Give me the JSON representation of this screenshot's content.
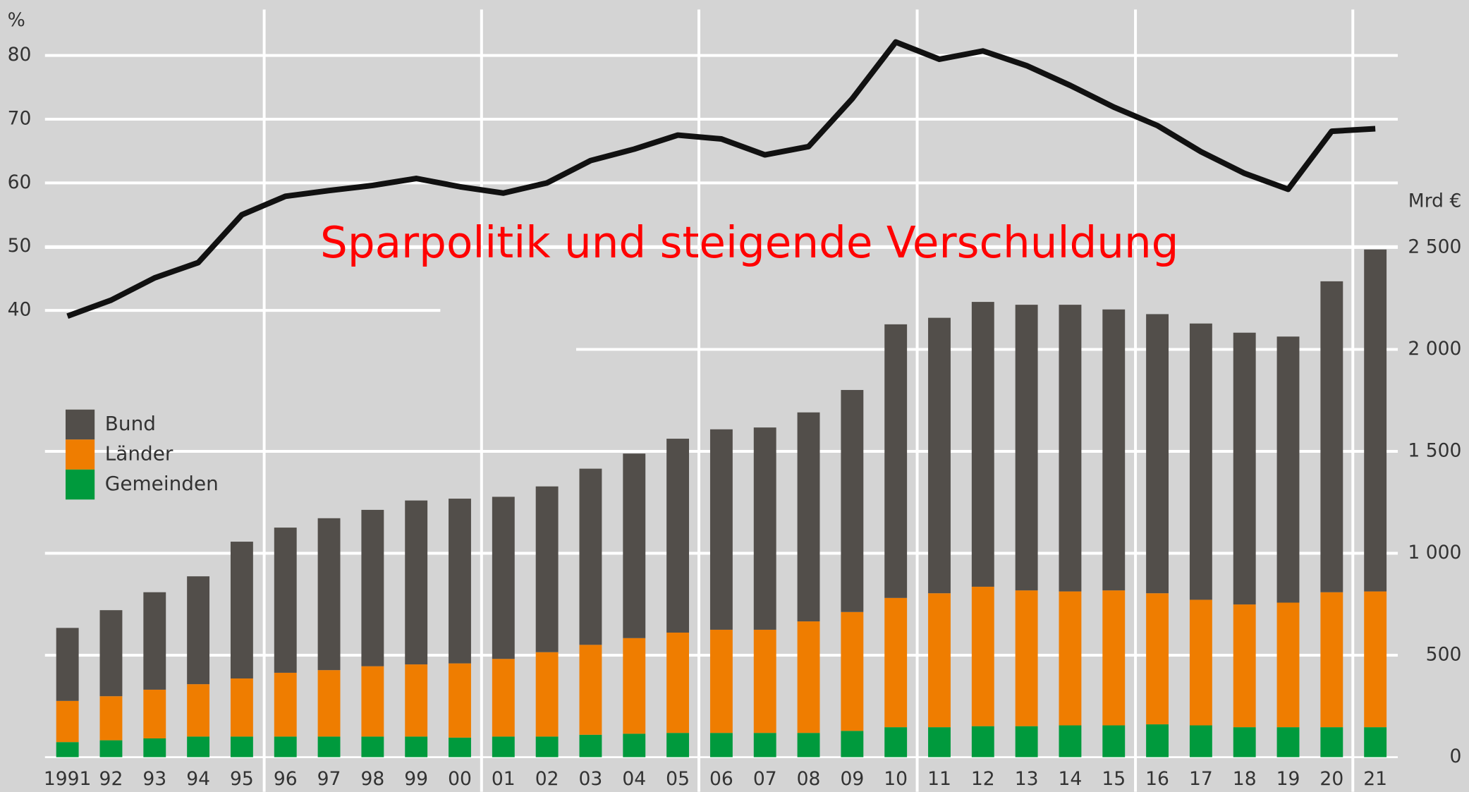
{
  "chart_data": {
    "type": "bar",
    "annotation": "Sparpolitik und steigende Verschuldung",
    "ylabel": "%",
    "y2label": "Mrd €",
    "categories": [
      "1991",
      "92",
      "93",
      "94",
      "95",
      "96",
      "97",
      "98",
      "99",
      "00",
      "01",
      "02",
      "03",
      "04",
      "05",
      "06",
      "07",
      "08",
      "09",
      "10",
      "11",
      "12",
      "13",
      "14",
      "15",
      "16",
      "17",
      "18",
      "19",
      "20",
      "21"
    ],
    "series": [
      {
        "name": "Bund",
        "color": "#524e4a",
        "axis": "y2",
        "values": [
          358,
          422,
          478,
          529,
          671,
          712,
          745,
          767,
          804,
          808,
          795,
          813,
          864,
          905,
          951,
          983,
          992,
          1025,
          1089,
          1342,
          1351,
          1397,
          1401,
          1406,
          1378,
          1369,
          1355,
          1333,
          1305,
          1525,
          1677
        ]
      },
      {
        "name": "Länder",
        "color": "#ef7d00",
        "axis": "y2",
        "values": [
          202,
          216,
          239,
          257,
          285,
          313,
          326,
          345,
          354,
          364,
          381,
          414,
          441,
          469,
          492,
          506,
          506,
          547,
          583,
          634,
          657,
          684,
          666,
          657,
          662,
          643,
          616,
          602,
          611,
          662,
          666
        ]
      },
      {
        "name": "Gemeinden",
        "color": "#009a3d",
        "axis": "y2",
        "values": [
          74,
          83,
          92,
          101,
          101,
          101,
          101,
          101,
          101,
          96,
          101,
          101,
          110,
          115,
          119,
          119,
          119,
          119,
          129,
          147,
          147,
          152,
          152,
          156,
          156,
          161,
          156,
          147,
          147,
          147,
          147
        ]
      },
      {
        "type": "line",
        "color": "#111111",
        "values": [
          39.1,
          41.6,
          45.1,
          47.5,
          55.0,
          57.9,
          58.8,
          59.6,
          60.7,
          59.4,
          58.4,
          60.0,
          63.5,
          65.3,
          67.5,
          66.9,
          64.4,
          65.7,
          73.2,
          82.1,
          79.4,
          80.7,
          78.4,
          75.3,
          71.9,
          69.0,
          64.9,
          61.5,
          59.0,
          68.1,
          68.5
        ]
      }
    ],
    "ylim": [
      -30.1,
      87.2
    ],
    "yticks": [
      40,
      50,
      60,
      70,
      80
    ],
    "y2lim": [
      0,
      3667
    ],
    "y2ticks": [
      0,
      500,
      {
        "value": 1000,
        "label": "1 000"
      },
      {
        "value": 1500,
        "label": "1 500"
      },
      {
        "value": 2000,
        "label": "2 000"
      },
      {
        "value": 2500,
        "label": "2 500"
      }
    ],
    "grid": true,
    "legend": "left"
  }
}
